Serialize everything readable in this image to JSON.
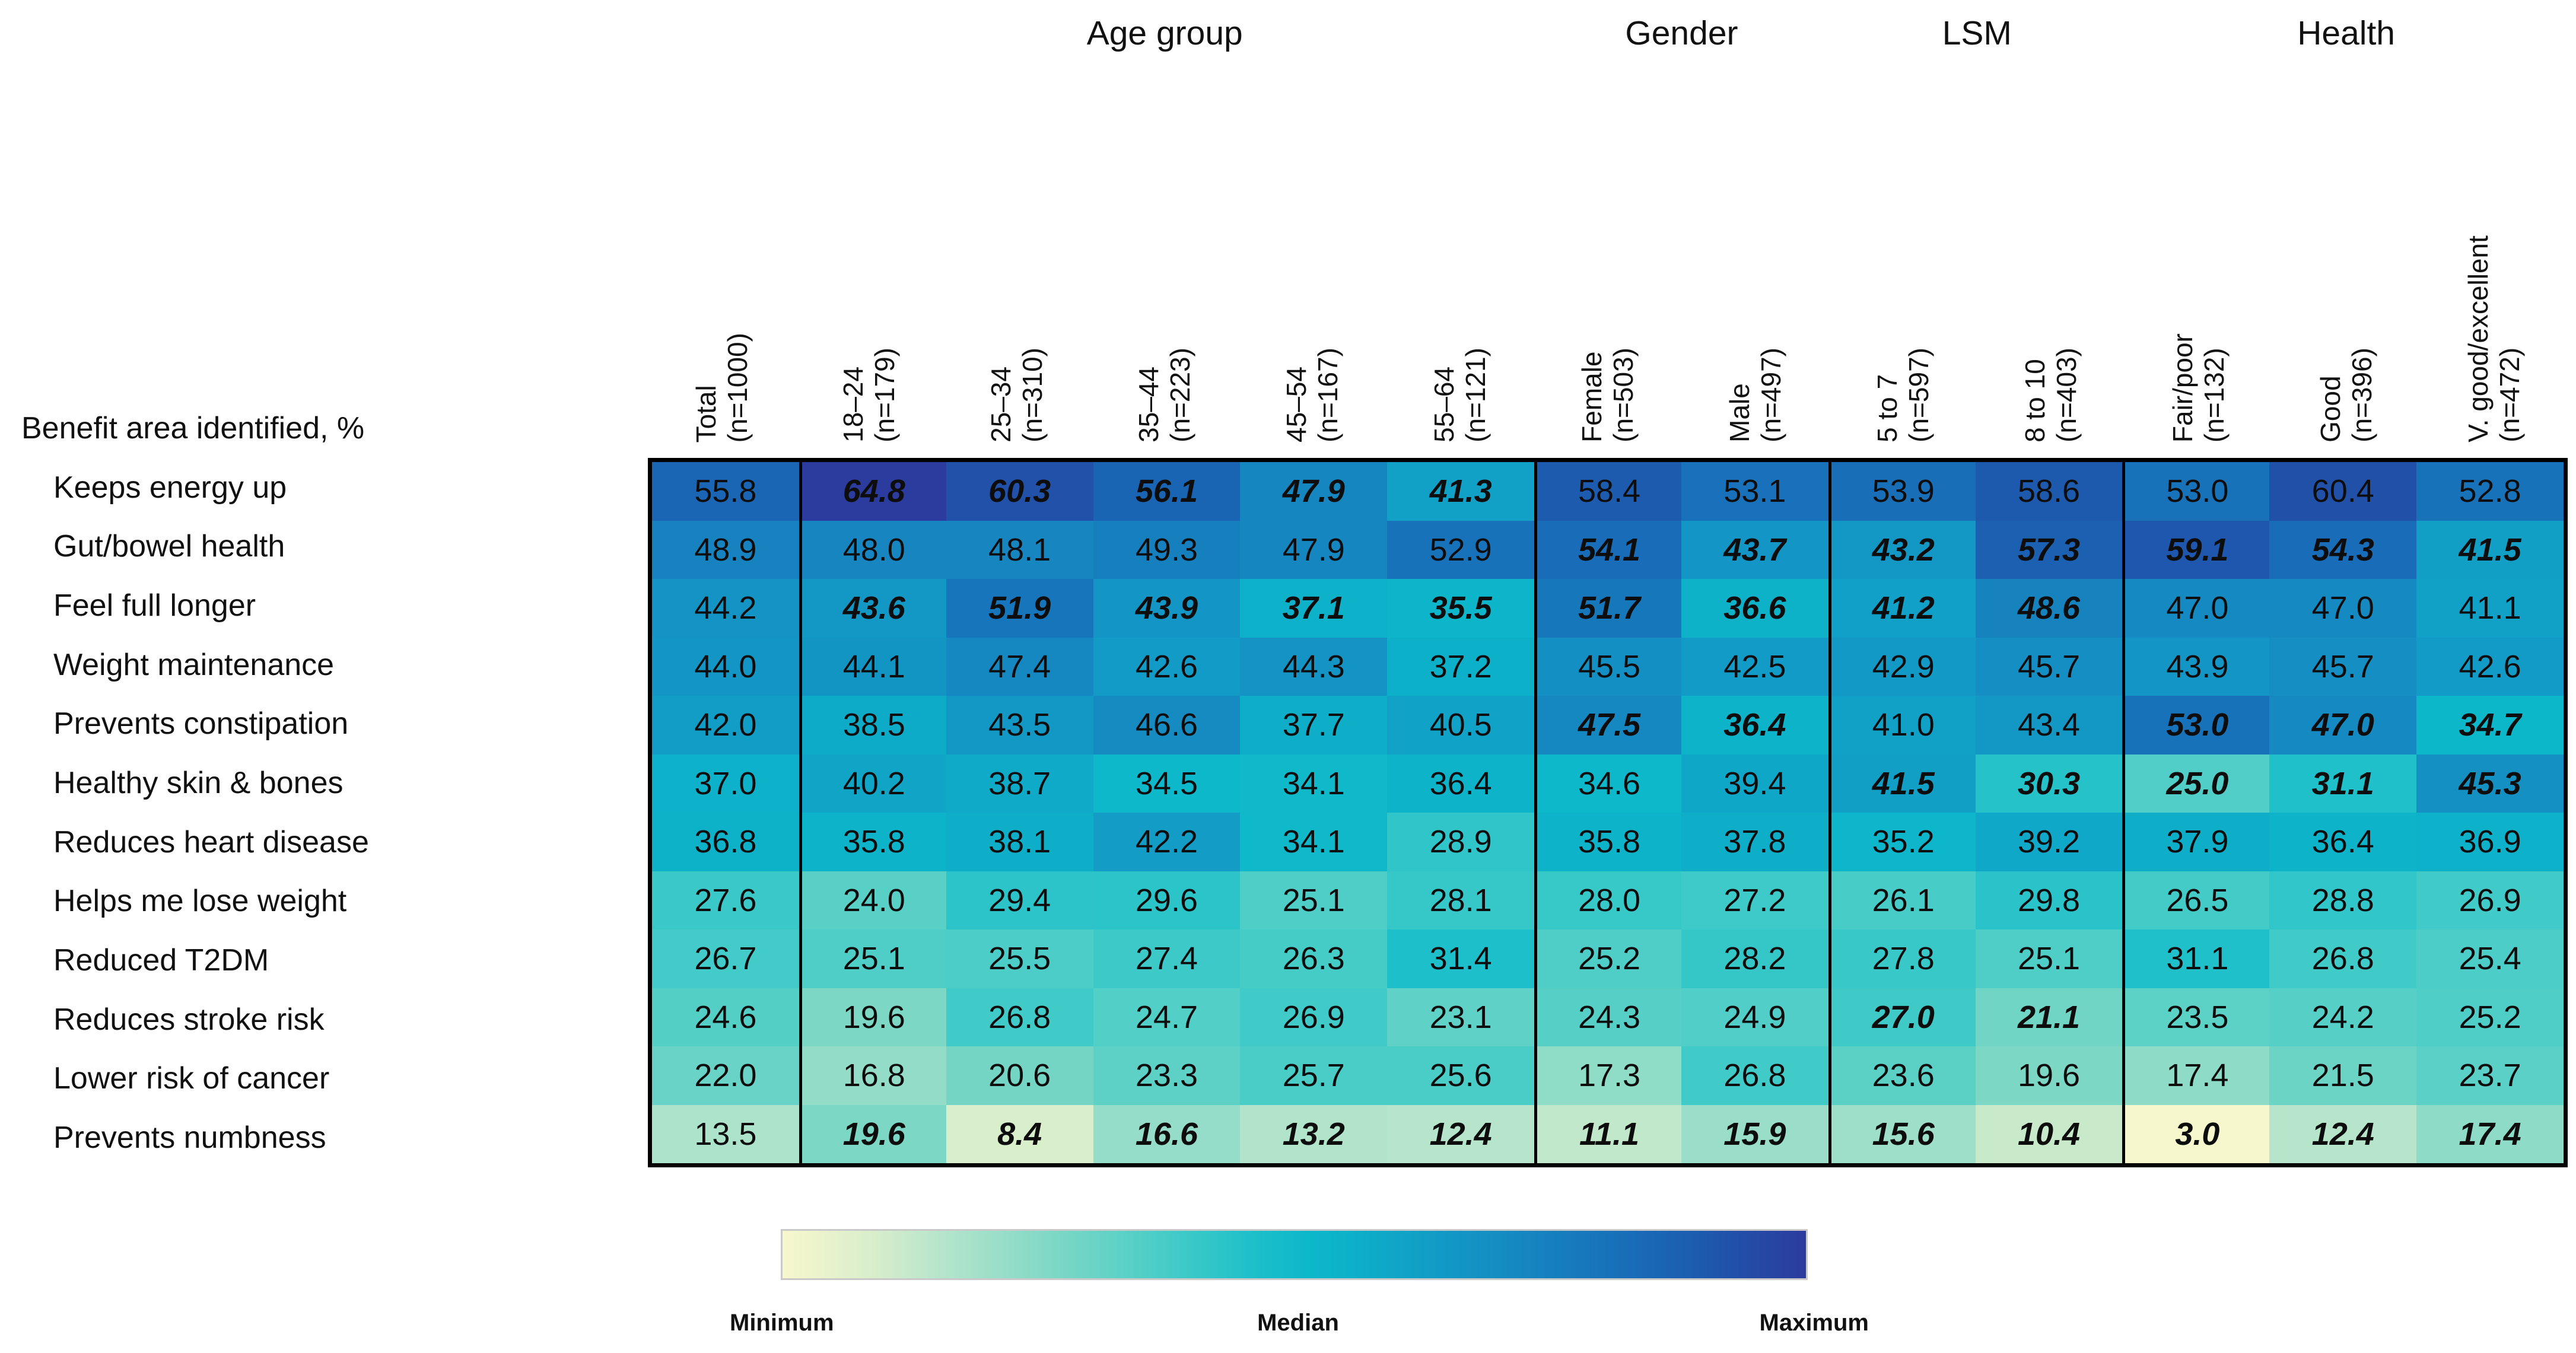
{
  "chart_data": {
    "type": "heatmap",
    "rows_header": "Benefit area identified, %",
    "column_groups": [
      {
        "label": "Age group",
        "start": 1,
        "span": 5
      },
      {
        "label": "Gender",
        "start": 6,
        "span": 2
      },
      {
        "label": "LSM",
        "start": 8,
        "span": 2
      },
      {
        "label": "Health",
        "start": 10,
        "span": 3
      }
    ],
    "columns": [
      {
        "name": "Total",
        "n": "(n=1000)"
      },
      {
        "name": "18–24",
        "n": "(n=179)"
      },
      {
        "name": "25–34",
        "n": "(n=310)"
      },
      {
        "name": "35–44",
        "n": "(n=223)"
      },
      {
        "name": "45–54",
        "n": "(n=167)"
      },
      {
        "name": "55–64",
        "n": "(n=121)"
      },
      {
        "name": "Female",
        "n": "(n=503)"
      },
      {
        "name": "Male",
        "n": "(n=497)"
      },
      {
        "name": "5 to 7",
        "n": "(n=597)"
      },
      {
        "name": "8 to 10",
        "n": "(n=403)"
      },
      {
        "name": "Fair/poor",
        "n": "(n=132)"
      },
      {
        "name": "Good",
        "n": "(n=396)"
      },
      {
        "name": "V. good/excellent",
        "n": "(n=472)"
      }
    ],
    "rows": [
      "Keeps energy up",
      "Gut/bowel health",
      "Feel full longer",
      "Weight maintenance",
      "Prevents constipation",
      "Healthy skin & bones",
      "Reduces heart disease",
      "Helps me lose weight",
      "Reduced T2DM",
      "Reduces stroke risk",
      "Lower risk of cancer",
      "Prevents numbness"
    ],
    "values": [
      [
        "55.8",
        "64.8",
        "60.3",
        "56.1",
        "47.9",
        "41.3",
        "58.4",
        "53.1",
        "53.9",
        "58.6",
        "53.0",
        "60.4",
        "52.8"
      ],
      [
        "48.9",
        "48.0",
        "48.1",
        "49.3",
        "47.9",
        "52.9",
        "54.1",
        "43.7",
        "43.2",
        "57.3",
        "59.1",
        "54.3",
        "41.5"
      ],
      [
        "44.2",
        "43.6",
        "51.9",
        "43.9",
        "37.1",
        "35.5",
        "51.7",
        "36.6",
        "41.2",
        "48.6",
        "47.0",
        "47.0",
        "41.1"
      ],
      [
        "44.0",
        "44.1",
        "47.4",
        "42.6",
        "44.3",
        "37.2",
        "45.5",
        "42.5",
        "42.9",
        "45.7",
        "43.9",
        "45.7",
        "42.6"
      ],
      [
        "42.0",
        "38.5",
        "43.5",
        "46.6",
        "37.7",
        "40.5",
        "47.5",
        "36.4",
        "41.0",
        "43.4",
        "53.0",
        "47.0",
        "34.7"
      ],
      [
        "37.0",
        "40.2",
        "38.7",
        "34.5",
        "34.1",
        "36.4",
        "34.6",
        "39.4",
        "41.5",
        "30.3",
        "25.0",
        "31.1",
        "45.3"
      ],
      [
        "36.8",
        "35.8",
        "38.1",
        "42.2",
        "34.1",
        "28.9",
        "35.8",
        "37.8",
        "35.2",
        "39.2",
        "37.9",
        "36.4",
        "36.9"
      ],
      [
        "27.6",
        "24.0",
        "29.4",
        "29.6",
        "25.1",
        "28.1",
        "28.0",
        "27.2",
        "26.1",
        "29.8",
        "26.5",
        "28.8",
        "26.9"
      ],
      [
        "26.7",
        "25.1",
        "25.5",
        "27.4",
        "26.3",
        "31.4",
        "25.2",
        "28.2",
        "27.8",
        "25.1",
        "31.1",
        "26.8",
        "25.4"
      ],
      [
        "24.6",
        "19.6",
        "26.8",
        "24.7",
        "26.9",
        "23.1",
        "24.3",
        "24.9",
        "27.0",
        "21.1",
        "23.5",
        "24.2",
        "25.2"
      ],
      [
        "22.0",
        "16.8",
        "20.6",
        "23.3",
        "25.7",
        "25.6",
        "17.3",
        "26.8",
        "23.6",
        "19.6",
        "17.4",
        "21.5",
        "23.7"
      ],
      [
        "13.5",
        "19.6",
        "8.4",
        "16.6",
        "13.2",
        "12.4",
        "11.1",
        "15.9",
        "15.6",
        "10.4",
        "3.0",
        "12.4",
        "17.4"
      ]
    ],
    "bold_italic": [
      [
        0,
        1,
        1,
        1,
        1,
        1,
        0,
        0,
        0,
        0,
        0,
        0,
        0
      ],
      [
        0,
        0,
        0,
        0,
        0,
        0,
        1,
        1,
        1,
        1,
        1,
        1,
        1
      ],
      [
        0,
        1,
        1,
        1,
        1,
        1,
        1,
        1,
        1,
        1,
        0,
        0,
        0
      ],
      [
        0,
        0,
        0,
        0,
        0,
        0,
        0,
        0,
        0,
        0,
        0,
        0,
        0
      ],
      [
        0,
        0,
        0,
        0,
        0,
        0,
        1,
        1,
        0,
        0,
        1,
        1,
        1
      ],
      [
        0,
        0,
        0,
        0,
        0,
        0,
        0,
        0,
        1,
        1,
        1,
        1,
        1
      ],
      [
        0,
        0,
        0,
        0,
        0,
        0,
        0,
        0,
        0,
        0,
        0,
        0,
        0
      ],
      [
        0,
        0,
        0,
        0,
        0,
        0,
        0,
        0,
        0,
        0,
        0,
        0,
        0
      ],
      [
        0,
        0,
        0,
        0,
        0,
        0,
        0,
        0,
        0,
        0,
        0,
        0,
        0
      ],
      [
        0,
        0,
        0,
        0,
        0,
        0,
        0,
        0,
        1,
        1,
        0,
        0,
        0
      ],
      [
        0,
        0,
        0,
        0,
        0,
        0,
        0,
        0,
        0,
        0,
        0,
        0,
        0
      ],
      [
        0,
        1,
        1,
        1,
        1,
        1,
        1,
        1,
        1,
        1,
        1,
        1,
        1
      ]
    ],
    "value_range": {
      "min": 3.0,
      "max": 64.8
    },
    "color_scale": [
      [
        3.0,
        "#f7f7cd"
      ],
      [
        8.4,
        "#d9eecb"
      ],
      [
        13.5,
        "#aee3cb"
      ],
      [
        19.6,
        "#7cd7c5"
      ],
      [
        24.0,
        "#58d0c6"
      ],
      [
        27.6,
        "#3ac9c8"
      ],
      [
        31.4,
        "#1dbfca"
      ],
      [
        34.5,
        "#0db8ca"
      ],
      [
        37.0,
        "#0db1c9"
      ],
      [
        40.5,
        "#10a3c7"
      ],
      [
        43.5,
        "#1397c5"
      ],
      [
        46.6,
        "#158bc2"
      ],
      [
        49.3,
        "#1680be"
      ],
      [
        52.9,
        "#1872ba"
      ],
      [
        55.8,
        "#1a66b4"
      ],
      [
        58.6,
        "#1d5aae"
      ],
      [
        60.4,
        "#2150a9"
      ],
      [
        64.8,
        "#2c3c9e"
      ]
    ],
    "legend": {
      "min": "Minimum",
      "median": "Median",
      "max": "Maximum"
    }
  }
}
